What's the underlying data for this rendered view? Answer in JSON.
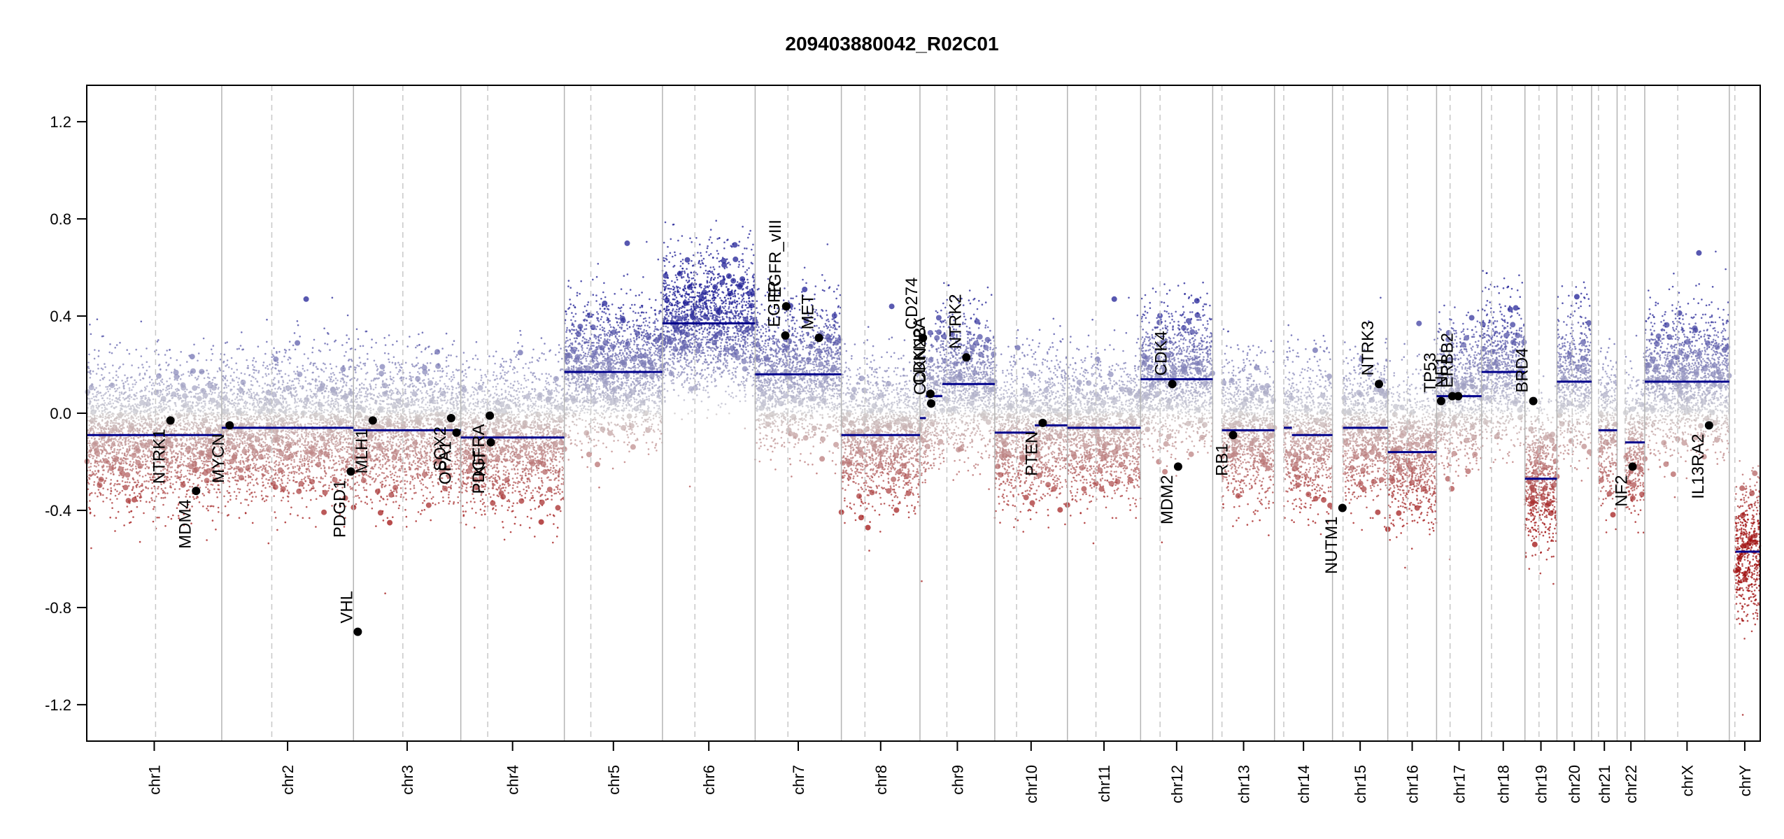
{
  "chart_data": {
    "type": "scatter",
    "title": "209403880042_R02C01",
    "xlabel": "",
    "ylabel": "",
    "ylim": [
      -1.35,
      1.35
    ],
    "yticks": [
      "1.2",
      "0.8",
      "0.4",
      "0.0",
      "-0.4",
      "-0.8",
      "-1.2"
    ],
    "ytick_values": [
      1.2,
      0.8,
      0.4,
      0.0,
      -0.4,
      -0.8,
      -1.2
    ],
    "colors": {
      "positive": "#1f1f96",
      "negative": "#a01010",
      "neutral": "#c8c8c8",
      "segment": "#00008b",
      "gene_point": "#000000",
      "boundary": "#b4b4b4",
      "centromere": "#c8c8c8"
    },
    "chromosomes": [
      {
        "name": "chr1",
        "length": 249,
        "centromere": 0.51
      },
      {
        "name": "chr2",
        "length": 243,
        "centromere": 0.38
      },
      {
        "name": "chr3",
        "length": 198,
        "centromere": 0.46
      },
      {
        "name": "chr4",
        "length": 191,
        "centromere": 0.26
      },
      {
        "name": "chr5",
        "length": 181,
        "centromere": 0.27
      },
      {
        "name": "chr6",
        "length": 171,
        "centromere": 0.35
      },
      {
        "name": "chr7",
        "length": 159,
        "centromere": 0.38
      },
      {
        "name": "chr8",
        "length": 145,
        "centromere": 0.3
      },
      {
        "name": "chr9",
        "length": 138,
        "centromere": 0.36
      },
      {
        "name": "chr10",
        "length": 134,
        "centromere": 0.3
      },
      {
        "name": "chr11",
        "length": 135,
        "centromere": 0.39
      },
      {
        "name": "chr12",
        "length": 133,
        "centromere": 0.27
      },
      {
        "name": "chr13",
        "length": 114,
        "centromere": 0.15
      },
      {
        "name": "chr14",
        "length": 107,
        "centromere": 0.16
      },
      {
        "name": "chr15",
        "length": 102,
        "centromere": 0.19
      },
      {
        "name": "chr16",
        "length": 90,
        "centromere": 0.4
      },
      {
        "name": "chr17",
        "length": 83,
        "centromere": 0.3
      },
      {
        "name": "chr18",
        "length": 80,
        "centromere": 0.23
      },
      {
        "name": "chr19",
        "length": 59,
        "centromere": 0.44
      },
      {
        "name": "chr20",
        "length": 64,
        "centromere": 0.44
      },
      {
        "name": "chr21",
        "length": 47,
        "centromere": 0.27
      },
      {
        "name": "chr22",
        "length": 51,
        "centromere": 0.29
      },
      {
        "name": "chrX",
        "length": 156,
        "centromere": 0.39
      },
      {
        "name": "chrY",
        "length": 57,
        "centromere": 0.18
      }
    ],
    "segments": [
      {
        "chr": "chr1",
        "start": 0.0,
        "end": 1.0,
        "value": -0.09
      },
      {
        "chr": "chr2",
        "start": 0.0,
        "end": 1.0,
        "value": -0.06
      },
      {
        "chr": "chr3",
        "start": 0.0,
        "end": 1.0,
        "value": -0.07
      },
      {
        "chr": "chr4",
        "start": 0.0,
        "end": 1.0,
        "value": -0.1
      },
      {
        "chr": "chr5",
        "start": 0.0,
        "end": 1.0,
        "value": 0.17
      },
      {
        "chr": "chr6",
        "start": 0.0,
        "end": 1.0,
        "value": 0.37
      },
      {
        "chr": "chr7",
        "start": 0.0,
        "end": 1.0,
        "value": 0.16
      },
      {
        "chr": "chr8",
        "start": 0.0,
        "end": 1.0,
        "value": -0.09
      },
      {
        "chr": "chr9",
        "start": 0.0,
        "end": 0.08,
        "value": -0.02
      },
      {
        "chr": "chr9",
        "start": 0.08,
        "end": 0.3,
        "value": 0.07
      },
      {
        "chr": "chr9",
        "start": 0.3,
        "end": 1.0,
        "value": 0.12
      },
      {
        "chr": "chr10",
        "start": 0.0,
        "end": 0.55,
        "value": -0.08
      },
      {
        "chr": "chr10",
        "start": 0.55,
        "end": 1.0,
        "value": -0.05
      },
      {
        "chr": "chr11",
        "start": 0.0,
        "end": 1.0,
        "value": -0.06
      },
      {
        "chr": "chr12",
        "start": 0.0,
        "end": 1.0,
        "value": 0.14
      },
      {
        "chr": "chr13",
        "start": 0.15,
        "end": 1.0,
        "value": -0.07
      },
      {
        "chr": "chr14",
        "start": 0.16,
        "end": 0.3,
        "value": -0.06
      },
      {
        "chr": "chr14",
        "start": 0.3,
        "end": 1.0,
        "value": -0.09
      },
      {
        "chr": "chr15",
        "start": 0.19,
        "end": 1.0,
        "value": -0.06
      },
      {
        "chr": "chr16",
        "start": 0.0,
        "end": 1.0,
        "value": -0.16
      },
      {
        "chr": "chr17",
        "start": 0.0,
        "end": 1.0,
        "value": 0.07
      },
      {
        "chr": "chr18",
        "start": 0.0,
        "end": 1.0,
        "value": 0.17
      },
      {
        "chr": "chr19",
        "start": 0.0,
        "end": 1.0,
        "value": -0.27
      },
      {
        "chr": "chr20",
        "start": 0.0,
        "end": 1.0,
        "value": 0.13
      },
      {
        "chr": "chr21",
        "start": 0.27,
        "end": 1.0,
        "value": -0.07
      },
      {
        "chr": "chr22",
        "start": 0.29,
        "end": 1.0,
        "value": -0.12
      },
      {
        "chr": "chrX",
        "start": 0.0,
        "end": 1.0,
        "value": 0.13
      },
      {
        "chr": "chrY",
        "start": 0.2,
        "end": 1.0,
        "value": -0.57
      }
    ],
    "genes": [
      {
        "name": "NTRK1",
        "chr": "chr1",
        "pos": 0.62,
        "value": -0.03,
        "label_below": true
      },
      {
        "name": "MDM4",
        "chr": "chr1",
        "pos": 0.81,
        "value": -0.32,
        "label_below": true
      },
      {
        "name": "MYCN",
        "chr": "chr2",
        "pos": 0.06,
        "value": -0.05,
        "label_below": true
      },
      {
        "name": "PDGD1",
        "chr": "chr2",
        "pos": 0.98,
        "value": -0.24,
        "label_below": true
      },
      {
        "name": "VHL",
        "chr": "chr3",
        "pos": 0.04,
        "value": -0.9,
        "label_below": false
      },
      {
        "name": "MLH1",
        "chr": "chr3",
        "pos": 0.18,
        "value": -0.03,
        "label_below": true
      },
      {
        "name": "SOX2",
        "chr": "chr3",
        "pos": 0.91,
        "value": -0.02,
        "label_below": true
      },
      {
        "name": "OPA1",
        "chr": "chr3",
        "pos": 0.96,
        "value": -0.08,
        "label_below": true
      },
      {
        "name": "PDGFRA",
        "chr": "chr4",
        "pos": 0.28,
        "value": -0.01,
        "label_below": true
      },
      {
        "name": "KIT",
        "chr": "chr4",
        "pos": 0.29,
        "value": -0.12,
        "label_below": true
      },
      {
        "name": "EGFR",
        "chr": "chr7",
        "pos": 0.35,
        "value": 0.32,
        "label_below": false
      },
      {
        "name": "EGFR_vIII",
        "chr": "chr7",
        "pos": 0.36,
        "value": 0.44,
        "label_below": false
      },
      {
        "name": "MET",
        "chr": "chr7",
        "pos": 0.74,
        "value": 0.31,
        "label_below": false
      },
      {
        "name": "CD274",
        "chr": "chr9",
        "pos": 0.04,
        "value": 0.31,
        "label_below": false
      },
      {
        "name": "CDKN2A",
        "chr": "chr9",
        "pos": 0.14,
        "value": 0.08,
        "label_below": false
      },
      {
        "name": "CDKN2B",
        "chr": "chr9",
        "pos": 0.15,
        "value": 0.04,
        "label_below": false
      },
      {
        "name": "NTRK2",
        "chr": "chr9",
        "pos": 0.62,
        "value": 0.23,
        "label_below": false
      },
      {
        "name": "PTEN",
        "chr": "chr10",
        "pos": 0.66,
        "value": -0.04,
        "label_below": true
      },
      {
        "name": "CDK4",
        "chr": "chr12",
        "pos": 0.44,
        "value": 0.12,
        "label_below": false
      },
      {
        "name": "MDM2",
        "chr": "chr12",
        "pos": 0.52,
        "value": -0.22,
        "label_below": true
      },
      {
        "name": "RB1",
        "chr": "chr13",
        "pos": 0.33,
        "value": -0.09,
        "label_below": true
      },
      {
        "name": "NUTM1",
        "chr": "chr15",
        "pos": 0.18,
        "value": -0.39,
        "label_below": true
      },
      {
        "name": "NTRK3",
        "chr": "chr15",
        "pos": 0.84,
        "value": 0.12,
        "label_below": false
      },
      {
        "name": "TP53",
        "chr": "chr17",
        "pos": 0.1,
        "value": 0.05,
        "label_below": false
      },
      {
        "name": "NF1",
        "chr": "chr17",
        "pos": 0.35,
        "value": 0.07,
        "label_below": false
      },
      {
        "name": "ERBB2",
        "chr": "chr17",
        "pos": 0.48,
        "value": 0.07,
        "label_below": false
      },
      {
        "name": "BRD4",
        "chr": "chr19",
        "pos": 0.26,
        "value": 0.05,
        "label_below": false
      },
      {
        "name": "NF2",
        "chr": "chr22",
        "pos": 0.56,
        "value": -0.22,
        "label_below": true
      },
      {
        "name": "IL13RA2",
        "chrom": "chrX",
        "chr": "chrX",
        "pos": 0.76,
        "value": -0.05,
        "label_below": true
      }
    ]
  }
}
